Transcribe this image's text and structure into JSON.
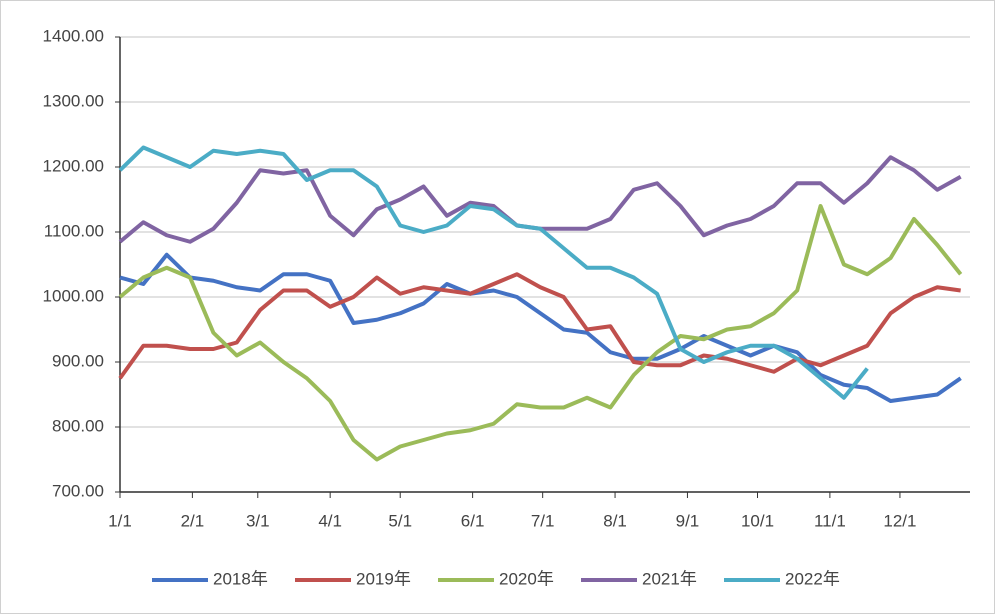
{
  "chart_data": {
    "type": "line",
    "x": [
      0,
      10,
      20,
      30,
      40,
      50,
      60,
      70,
      80,
      90,
      100,
      110,
      120,
      130,
      140,
      150,
      160,
      170,
      180,
      190,
      200,
      210,
      220,
      230,
      240,
      250,
      260,
      270,
      280,
      290,
      300,
      310,
      320,
      330,
      340,
      350,
      360
    ],
    "xlim": [
      0,
      364
    ],
    "xticks": [
      {
        "value": 0,
        "label": "1/1"
      },
      {
        "value": 31,
        "label": "2/1"
      },
      {
        "value": 59,
        "label": "3/1"
      },
      {
        "value": 90,
        "label": "4/1"
      },
      {
        "value": 120,
        "label": "5/1"
      },
      {
        "value": 151,
        "label": "6/1"
      },
      {
        "value": 181,
        "label": "7/1"
      },
      {
        "value": 212,
        "label": "8/1"
      },
      {
        "value": 243,
        "label": "9/1"
      },
      {
        "value": 273,
        "label": "10/1"
      },
      {
        "value": 304,
        "label": "11/1"
      },
      {
        "value": 334,
        "label": "12/1"
      }
    ],
    "ylim": [
      700,
      1400
    ],
    "yticks": [
      {
        "value": 700,
        "label": "700.00"
      },
      {
        "value": 800,
        "label": "800.00"
      },
      {
        "value": 900,
        "label": "900.00"
      },
      {
        "value": 1000,
        "label": "1000.00"
      },
      {
        "value": 1100,
        "label": "1100.00"
      },
      {
        "value": 1200,
        "label": "1200.00"
      },
      {
        "value": 1300,
        "label": "1300.00"
      },
      {
        "value": 1400,
        "label": "1400.00"
      }
    ],
    "grid": true,
    "legend": "bottom",
    "series": [
      {
        "name": "2018年",
        "color": "#4472c4",
        "values": [
          1030,
          1020,
          1065,
          1030,
          1025,
          1015,
          1010,
          1035,
          1035,
          1025,
          960,
          965,
          975,
          990,
          1020,
          1005,
          1010,
          1000,
          975,
          950,
          945,
          915,
          905,
          905,
          920,
          940,
          925,
          910,
          925,
          915,
          880,
          865,
          860,
          840,
          845,
          850,
          875
        ]
      },
      {
        "name": "2019年",
        "color": "#c0504d",
        "values": [
          875,
          925,
          925,
          920,
          920,
          930,
          980,
          1010,
          1010,
          985,
          1000,
          1030,
          1005,
          1015,
          1010,
          1005,
          1020,
          1035,
          1015,
          1000,
          950,
          955,
          900,
          895,
          895,
          910,
          905,
          895,
          885,
          905,
          895,
          910,
          925,
          975,
          1000,
          1015,
          1010
        ]
      },
      {
        "name": "2020年",
        "color": "#9bbb59",
        "values": [
          1000,
          1030,
          1045,
          1030,
          945,
          910,
          930,
          900,
          875,
          840,
          780,
          750,
          770,
          780,
          790,
          795,
          805,
          835,
          830,
          830,
          845,
          830,
          880,
          915,
          940,
          935,
          950,
          955,
          975,
          1010,
          1140,
          1050,
          1035,
          1060,
          1120,
          1080,
          1035
        ]
      },
      {
        "name": "2021年",
        "color": "#8064a2",
        "values": [
          1085,
          1115,
          1095,
          1085,
          1105,
          1145,
          1195,
          1190,
          1195,
          1125,
          1095,
          1135,
          1150,
          1170,
          1125,
          1145,
          1140,
          1110,
          1105,
          1105,
          1105,
          1120,
          1165,
          1175,
          1140,
          1095,
          1110,
          1120,
          1140,
          1175,
          1175,
          1145,
          1175,
          1215,
          1195,
          1165,
          1185
        ]
      },
      {
        "name": "2022年",
        "color": "#4bacc6",
        "values": [
          1195,
          1230,
          1215,
          1200,
          1225,
          1220,
          1225,
          1220,
          1180,
          1195,
          1195,
          1170,
          1110,
          1100,
          1110,
          1140,
          1135,
          1110,
          1105,
          1075,
          1045,
          1045,
          1030,
          1005,
          920,
          900,
          915,
          925,
          925,
          905,
          875,
          845,
          890,
          null,
          null,
          null,
          null
        ]
      }
    ]
  }
}
